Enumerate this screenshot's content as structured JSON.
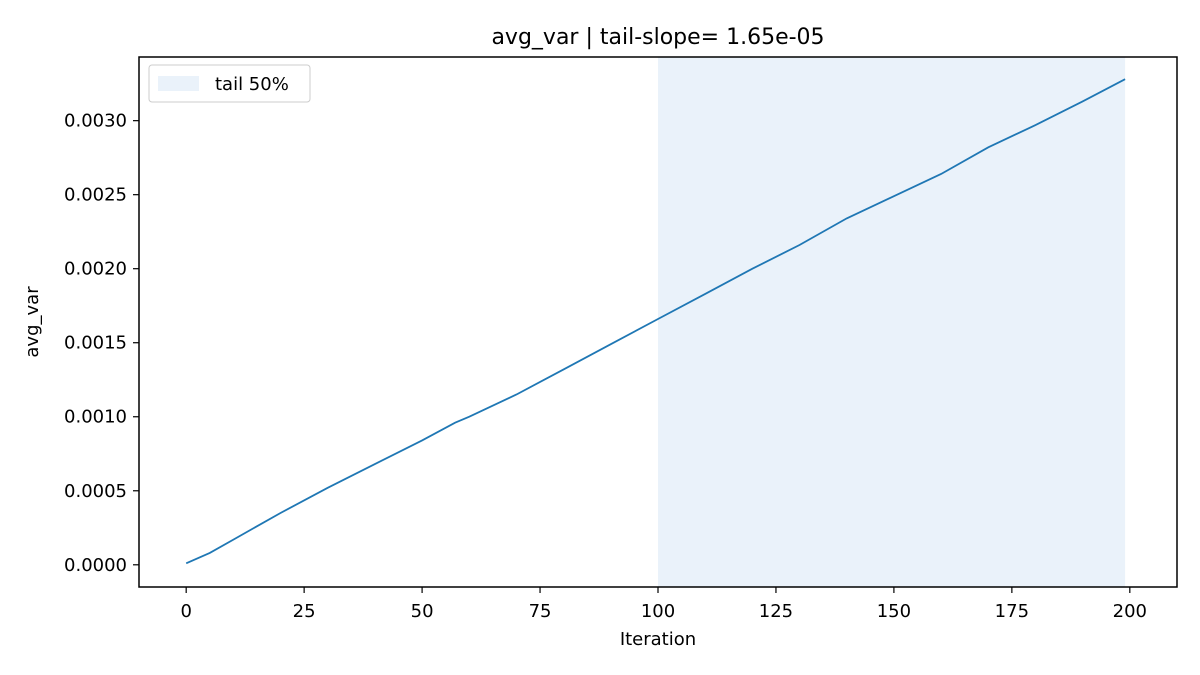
{
  "chart_data": {
    "type": "line",
    "title": "avg_var | tail-slope= 1.65e-05",
    "xlabel": "Iteration",
    "ylabel": "avg_var",
    "xlim": [
      -10,
      210
    ],
    "ylim": [
      -0.00015,
      0.00343
    ],
    "xticks": [
      0,
      25,
      50,
      75,
      100,
      125,
      150,
      175,
      200
    ],
    "xtick_labels": [
      "0",
      "25",
      "50",
      "75",
      "100",
      "125",
      "150",
      "175",
      "200"
    ],
    "yticks": [
      0.0,
      0.0005,
      0.001,
      0.0015,
      0.002,
      0.0025,
      0.003
    ],
    "ytick_labels": [
      "0.0000",
      "0.0005",
      "0.0010",
      "0.0015",
      "0.0020",
      "0.0025",
      "0.0030"
    ],
    "grid": false,
    "legend": {
      "position": "top-left",
      "entries": [
        "tail 50%"
      ]
    },
    "shaded_region": {
      "label": "tail 50%",
      "x": [
        100,
        199
      ],
      "color": "#eaf2fa"
    },
    "series": [
      {
        "color": "#1f77b4",
        "x": [
          0,
          5,
          10,
          20,
          30,
          40,
          50,
          57,
          60,
          70,
          80,
          90,
          100,
          110,
          120,
          130,
          140,
          150,
          160,
          170,
          180,
          190,
          199
        ],
        "values": [
          1e-05,
          8e-05,
          0.00017,
          0.00035,
          0.00052,
          0.00068,
          0.00084,
          0.00096,
          0.001,
          0.00115,
          0.00132,
          0.00149,
          0.00166,
          0.00183,
          0.002,
          0.00216,
          0.00234,
          0.00249,
          0.00264,
          0.00282,
          0.00297,
          0.00313,
          0.00328
        ]
      }
    ]
  }
}
